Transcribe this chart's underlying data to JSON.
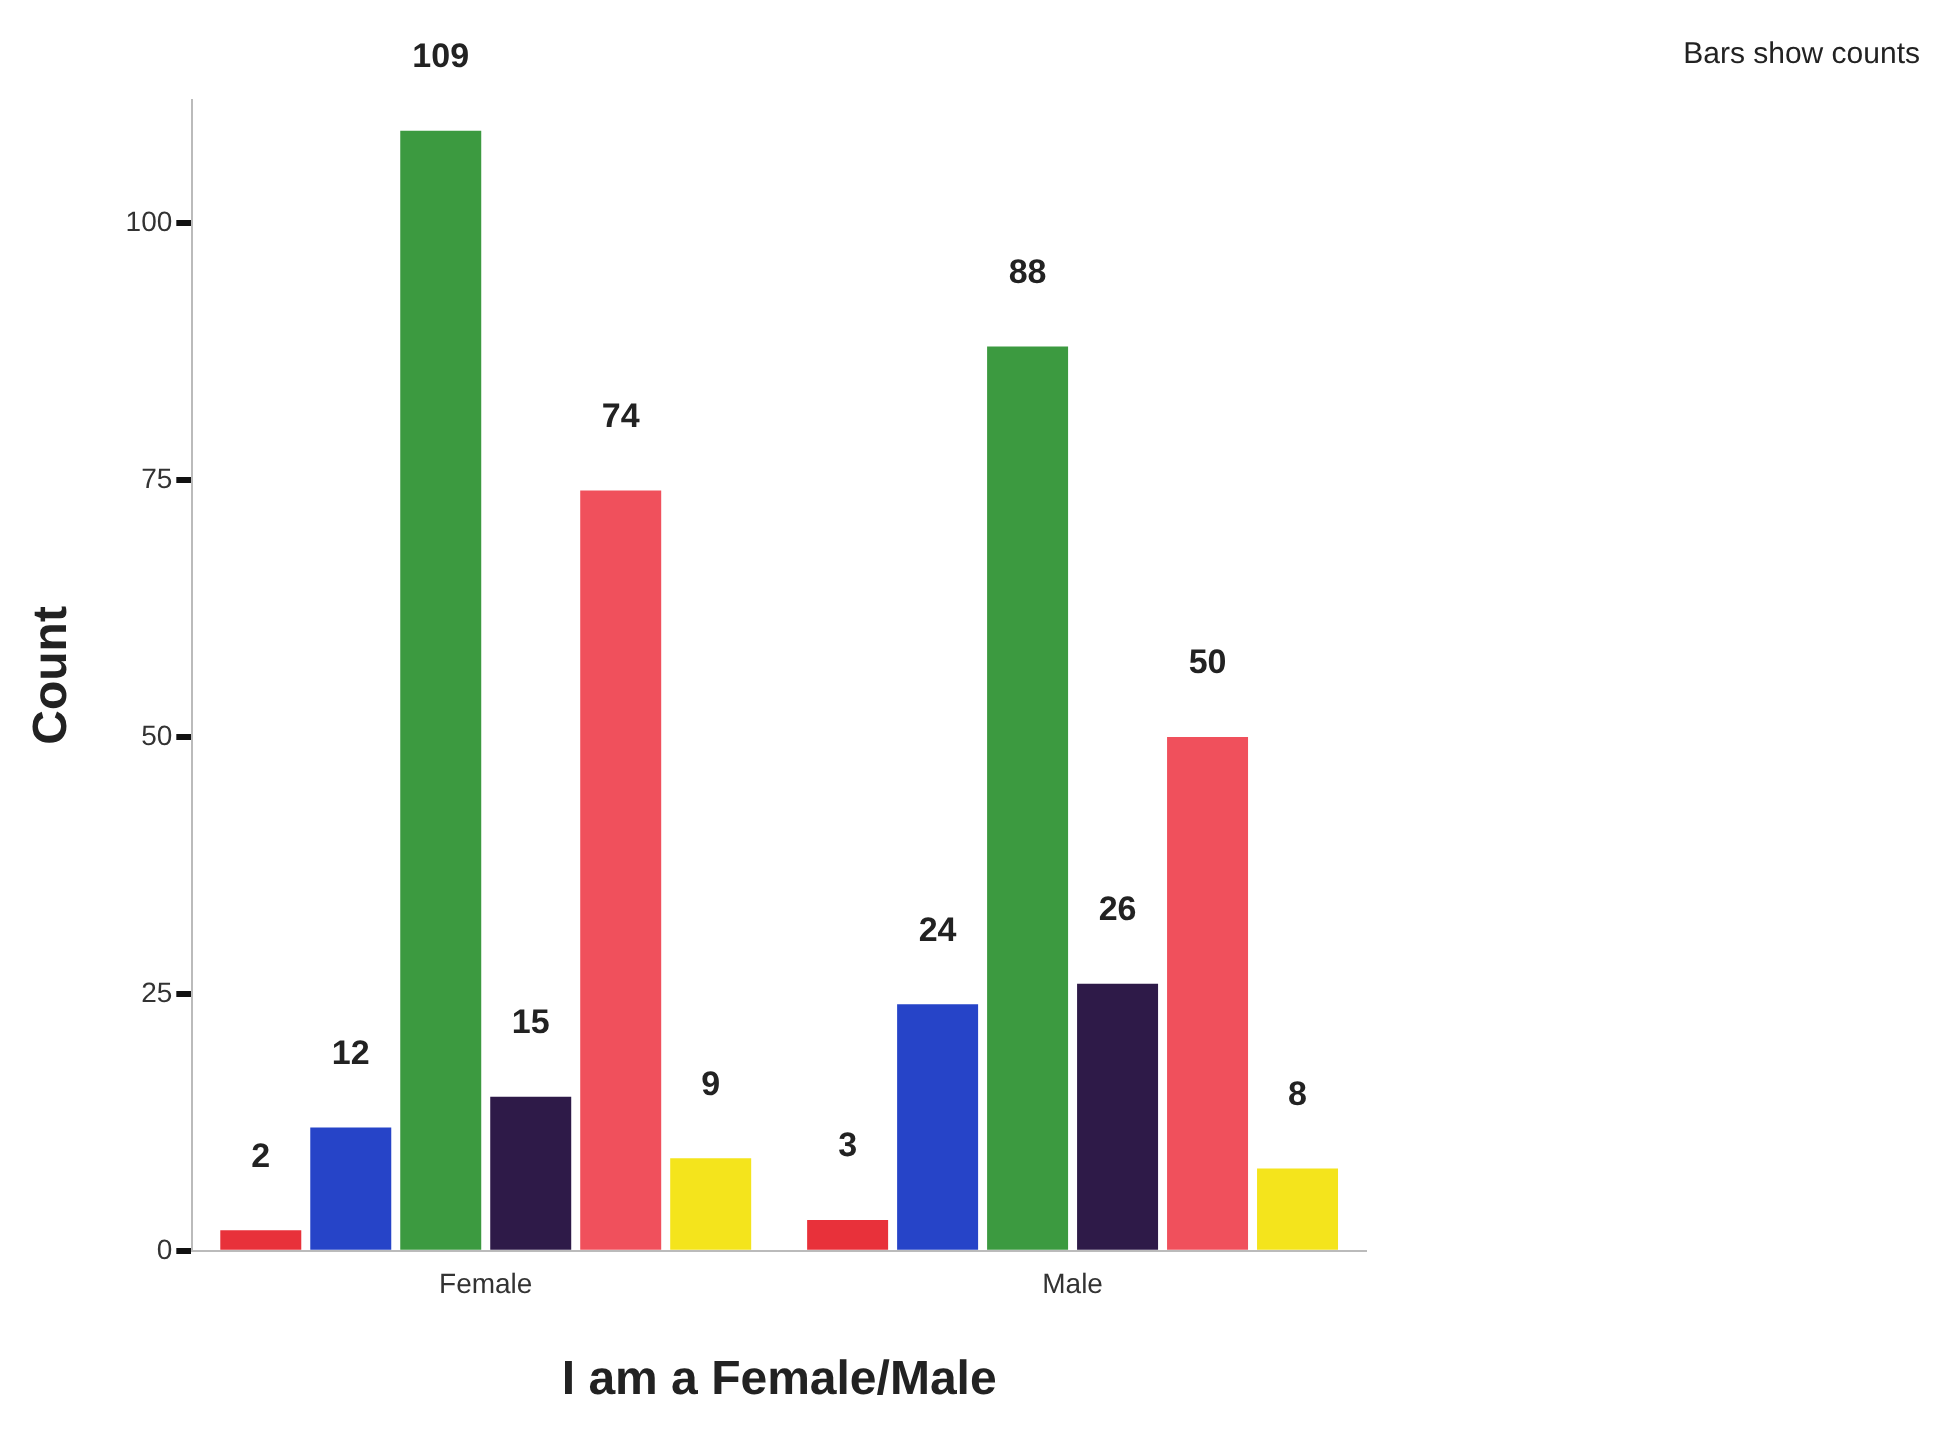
{
  "chart_data": {
    "type": "bar",
    "xlabel": "I am a Female/Male",
    "ylabel": "Count",
    "categories": [
      "Female",
      "Male"
    ],
    "series": [
      {
        "color": "#e8313a",
        "values": [
          2,
          3
        ]
      },
      {
        "color": "#2644c8",
        "values": [
          12,
          24
        ]
      },
      {
        "color": "#3c9a40",
        "values": [
          109,
          88
        ]
      },
      {
        "color": "#2e1a48",
        "values": [
          15,
          26
        ]
      },
      {
        "color": "#f0505c",
        "values": [
          74,
          50
        ]
      },
      {
        "color": "#f4e41c",
        "values": [
          9,
          8
        ]
      }
    ],
    "ylim": [
      0,
      112
    ],
    "yticks": [
      0,
      25,
      50,
      75,
      100
    ],
    "grid": false,
    "legend": false,
    "data_labels": true,
    "annotations": [
      "Bars show counts"
    ]
  }
}
